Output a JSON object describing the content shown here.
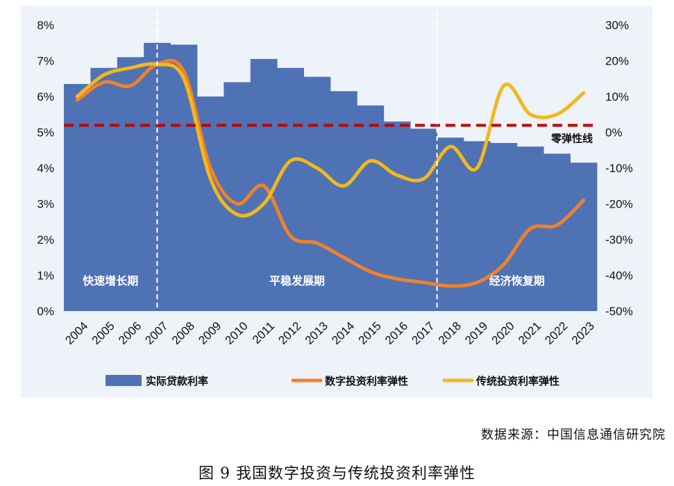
{
  "caption": "图 9  我国数字投资与传统投资利率弹性",
  "source": "数据来源：中国信息通信研究院",
  "chart_data": {
    "type": "bar+line",
    "categories": [
      "2004",
      "2005",
      "2006",
      "2007",
      "2008",
      "2009",
      "2010",
      "2011",
      "2012",
      "2013",
      "2014",
      "2015",
      "2016",
      "2017",
      "2018",
      "2019",
      "2020",
      "2021",
      "2022",
      "2023"
    ],
    "left_axis": {
      "ticks": [
        "0%",
        "1%",
        "2%",
        "3%",
        "4%",
        "5%",
        "6%",
        "7%",
        "8%"
      ],
      "range": [
        0,
        8
      ]
    },
    "right_axis": {
      "ticks": [
        "-50%",
        "-40%",
        "-30%",
        "-20%",
        "-10%",
        "0%",
        "10%",
        "20%",
        "30%"
      ],
      "range": [
        -50,
        30
      ]
    },
    "series": [
      {
        "name": "实际贷款利率",
        "type": "bar",
        "axis": "left",
        "color": "#4f72b5",
        "values": [
          6.35,
          6.8,
          7.1,
          7.5,
          7.45,
          6.0,
          6.4,
          7.05,
          6.8,
          6.55,
          6.15,
          5.75,
          5.3,
          5.1,
          4.85,
          4.75,
          4.7,
          4.6,
          4.4,
          4.15
        ]
      },
      {
        "name": "数字投资利率弹性",
        "type": "line",
        "axis": "right",
        "color": "#f0812a",
        "values": [
          9,
          14,
          13,
          19,
          17,
          -10,
          -20,
          -15,
          -29,
          -31,
          -35,
          -39,
          -41,
          -42,
          -43,
          -42,
          -37,
          -27,
          -26,
          -19
        ]
      },
      {
        "name": "传统投资利率弹性",
        "type": "line",
        "axis": "right",
        "color": "#f2b81c",
        "values": [
          10,
          16,
          18,
          19,
          15,
          -13,
          -23,
          -20,
          -8,
          -10,
          -15,
          -8,
          -12,
          -13,
          -4,
          -10,
          13,
          5,
          5,
          11
        ]
      }
    ],
    "zero_line": {
      "label": "零弹性线",
      "value": 3,
      "color": "#c00000"
    },
    "periods": [
      {
        "label": "快速增长期"
      },
      {
        "label": "平稳发展期"
      },
      {
        "label": "经济恢复期"
      }
    ],
    "period_boundaries": [
      3.5,
      14.0
    ]
  }
}
